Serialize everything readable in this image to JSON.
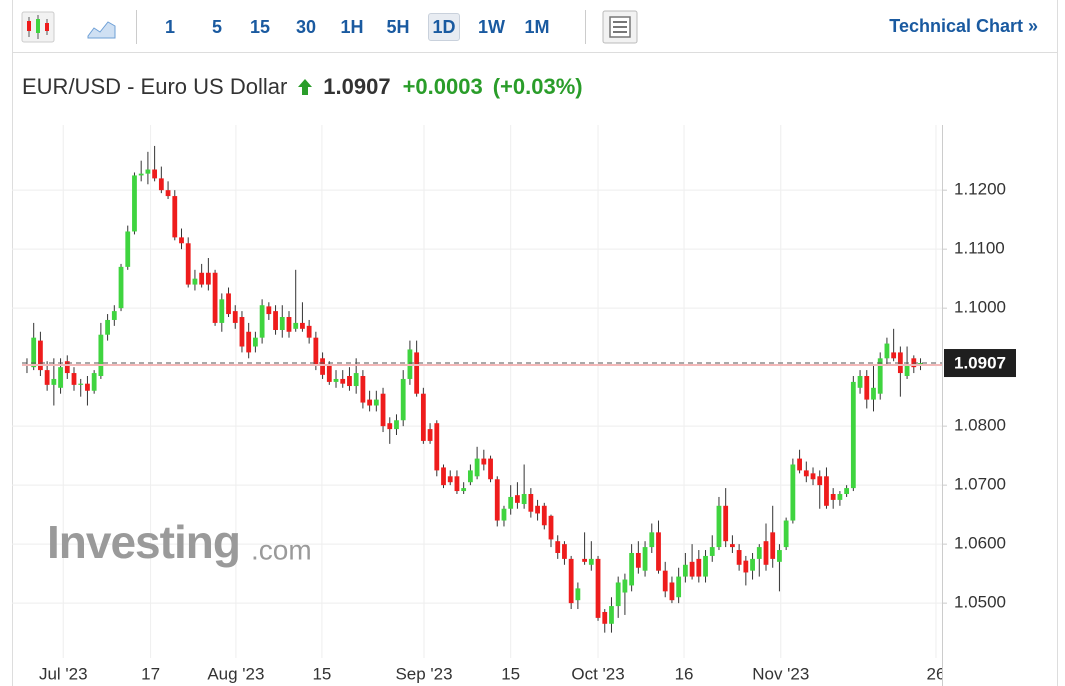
{
  "toolbar": {
    "intervals": [
      "1",
      "5",
      "15",
      "30",
      "1H",
      "5H",
      "1D",
      "1W",
      "1M"
    ],
    "selected": 6,
    "link": "Technical Chart »"
  },
  "header": {
    "title": "EUR/USD - Euro US Dollar",
    "change": "+0.0003",
    "change_pct": "(+0.03%)"
  },
  "watermark": {
    "brand": "Investing",
    "suffix": ".com"
  },
  "chart_data": {
    "type": "candlestick",
    "last_price": 1.0907,
    "up_color": "#3fd43f",
    "down_color": "#ee1c1c",
    "wick_color": "#333333",
    "grid": true,
    "xlim": [
      -0.74,
      135.9
    ],
    "xticks": [
      {
        "value": 5.4,
        "label": "Jul '23"
      },
      {
        "value": 18.4,
        "label": "17"
      },
      {
        "value": 31.1,
        "label": "Aug '23"
      },
      {
        "value": 43.9,
        "label": "15"
      },
      {
        "value": 59.1,
        "label": "Sep '23"
      },
      {
        "value": 72,
        "label": "15"
      },
      {
        "value": 85,
        "label": "Oct '23"
      },
      {
        "value": 97.8,
        "label": "16"
      },
      {
        "value": 112.2,
        "label": "Nov '23"
      },
      {
        "value": 135.3,
        "label": "26"
      }
    ],
    "ylim": [
      1.0407,
      1.1302
    ],
    "yticks": [
      {
        "value": 1.05,
        "label": "1.0500"
      },
      {
        "value": 1.06,
        "label": "1.0600"
      },
      {
        "value": 1.07,
        "label": "1.0700"
      },
      {
        "value": 1.08,
        "label": "1.0800"
      },
      {
        "value": 1.1,
        "label": "1.1000"
      },
      {
        "value": 1.11,
        "label": "1.1100"
      },
      {
        "value": 1.12,
        "label": "1.1200"
      }
    ],
    "ohlc": [
      [
        1.0905,
        1.0915,
        1.089,
        1.0905
      ],
      [
        1.09,
        1.0975,
        1.0895,
        1.095
      ],
      [
        1.0945,
        1.096,
        1.0885,
        1.0895
      ],
      [
        1.0895,
        1.091,
        1.086,
        1.087
      ],
      [
        1.087,
        1.0915,
        1.0835,
        1.088
      ],
      [
        1.0865,
        1.0915,
        1.0855,
        1.09
      ],
      [
        1.091,
        1.092,
        1.088,
        1.089
      ],
      [
        1.089,
        1.09,
        1.086,
        1.087
      ],
      [
        1.087,
        1.088,
        1.085,
        1.0872
      ],
      [
        1.0872,
        1.0885,
        1.0835,
        1.086
      ],
      [
        1.086,
        1.0895,
        1.0855,
        1.089
      ],
      [
        1.0885,
        1.0975,
        1.088,
        1.0955
      ],
      [
        1.0955,
        1.099,
        1.0945,
        1.098
      ],
      [
        1.098,
        1.1005,
        1.097,
        1.0995
      ],
      [
        1.1,
        1.1075,
        1.0995,
        1.107
      ],
      [
        1.107,
        1.114,
        1.1065,
        1.113
      ],
      [
        1.113,
        1.123,
        1.1125,
        1.1225
      ],
      [
        1.1225,
        1.125,
        1.1215,
        1.1228
      ],
      [
        1.1228,
        1.1265,
        1.121,
        1.1235
      ],
      [
        1.1235,
        1.1275,
        1.1215,
        1.122
      ],
      [
        1.122,
        1.124,
        1.1195,
        1.12
      ],
      [
        1.12,
        1.1215,
        1.1185,
        1.119
      ],
      [
        1.119,
        1.12,
        1.1115,
        1.112
      ],
      [
        1.112,
        1.1135,
        1.11,
        1.111
      ],
      [
        1.111,
        1.112,
        1.1035,
        1.104
      ],
      [
        1.104,
        1.1065,
        1.103,
        1.105
      ],
      [
        1.106,
        1.1075,
        1.1035,
        1.104
      ],
      [
        1.106,
        1.1085,
        1.103,
        1.104
      ],
      [
        1.106,
        1.1065,
        1.097,
        1.0975
      ],
      [
        1.0975,
        1.1025,
        1.096,
        1.1015
      ],
      [
        1.1025,
        1.1035,
        1.0985,
        1.099
      ],
      [
        1.0995,
        1.1005,
        1.0965,
        1.0975
      ],
      [
        1.0985,
        1.0995,
        1.0925,
        1.0935
      ],
      [
        1.096,
        1.0975,
        1.0915,
        1.0925
      ],
      [
        1.0935,
        1.096,
        1.0925,
        1.095
      ],
      [
        1.095,
        1.1015,
        1.094,
        1.1005
      ],
      [
        1.1003,
        1.101,
        1.098,
        1.099
      ],
      [
        1.0995,
        1.1005,
        1.0955,
        1.0963
      ],
      [
        1.0963,
        1.1005,
        1.095,
        1.0985
      ],
      [
        1.0985,
        1.0995,
        1.095,
        1.096
      ],
      [
        1.0965,
        1.1065,
        1.096,
        1.0975
      ],
      [
        1.0975,
        1.101,
        1.096,
        1.0965
      ],
      [
        1.097,
        1.098,
        1.094,
        1.095
      ],
      [
        1.095,
        1.096,
        1.0895,
        1.0905
      ],
      [
        1.0915,
        1.0925,
        1.088,
        1.0887
      ],
      [
        1.0905,
        1.091,
        1.087,
        1.0875
      ],
      [
        1.0875,
        1.0895,
        1.0865,
        1.088
      ],
      [
        1.088,
        1.0895,
        1.0865,
        1.0872
      ],
      [
        1.0885,
        1.09,
        1.086,
        1.0868
      ],
      [
        1.0868,
        1.0915,
        1.0855,
        1.089
      ],
      [
        1.0885,
        1.0895,
        1.083,
        1.084
      ],
      [
        1.0845,
        1.086,
        1.0825,
        1.0835
      ],
      [
        1.0835,
        1.086,
        1.0825,
        1.0845
      ],
      [
        1.0855,
        1.0865,
        1.079,
        1.08
      ],
      [
        1.0805,
        1.0815,
        1.077,
        1.0795
      ],
      [
        1.0795,
        1.082,
        1.0785,
        1.081
      ],
      [
        1.081,
        1.0895,
        1.08,
        1.088
      ],
      [
        1.088,
        1.0945,
        1.087,
        1.093
      ],
      [
        1.0925,
        1.0945,
        1.085,
        1.0855
      ],
      [
        1.0855,
        1.0865,
        1.077,
        1.0775
      ],
      [
        1.0795,
        1.0805,
        1.077,
        1.0775
      ],
      [
        1.0805,
        1.081,
        1.0715,
        1.0725
      ],
      [
        1.073,
        1.0735,
        1.0695,
        1.07
      ],
      [
        1.0715,
        1.0725,
        1.07,
        1.0705
      ],
      [
        1.0715,
        1.0725,
        1.0685,
        1.069
      ],
      [
        1.069,
        1.0705,
        1.0685,
        1.0695
      ],
      [
        1.0705,
        1.0735,
        1.07,
        1.0725
      ],
      [
        1.0715,
        1.0765,
        1.071,
        1.0745
      ],
      [
        1.0745,
        1.076,
        1.0725,
        1.0735
      ],
      [
        1.0745,
        1.075,
        1.0705,
        1.071
      ],
      [
        1.071,
        1.0715,
        1.063,
        1.064
      ],
      [
        1.064,
        1.0665,
        1.063,
        1.066
      ],
      [
        1.066,
        1.07,
        1.065,
        1.068
      ],
      [
        1.0683,
        1.0705,
        1.066,
        1.067
      ],
      [
        1.0668,
        1.0735,
        1.066,
        1.0685
      ],
      [
        1.0685,
        1.0695,
        1.0645,
        1.0655
      ],
      [
        1.0665,
        1.0675,
        1.064,
        1.0652
      ],
      [
        1.0665,
        1.067,
        1.0625,
        1.0632
      ],
      [
        1.0648,
        1.065,
        1.0595,
        1.0608
      ],
      [
        1.0605,
        1.0615,
        1.0575,
        1.0585
      ],
      [
        1.06,
        1.0605,
        1.0565,
        1.0575
      ],
      [
        1.0575,
        1.058,
        1.049,
        1.05
      ],
      [
        1.0505,
        1.0535,
        1.049,
        1.0525
      ],
      [
        1.0575,
        1.062,
        1.0565,
        1.057
      ],
      [
        1.0565,
        1.0605,
        1.0555,
        1.0575
      ],
      [
        1.0575,
        1.058,
        1.047,
        1.0475
      ],
      [
        1.0485,
        1.049,
        1.045,
        1.0465
      ],
      [
        1.0465,
        1.051,
        1.045,
        1.0495
      ],
      [
        1.0495,
        1.0545,
        1.0475,
        1.0535
      ],
      [
        1.0518,
        1.055,
        1.048,
        1.054
      ],
      [
        1.053,
        1.06,
        1.052,
        1.0585
      ],
      [
        1.0585,
        1.0605,
        1.055,
        1.056
      ],
      [
        1.0555,
        1.0605,
        1.0545,
        1.0595
      ],
      [
        1.0595,
        1.0635,
        1.0585,
        1.062
      ],
      [
        1.062,
        1.064,
        1.055,
        1.0555
      ],
      [
        1.0555,
        1.057,
        1.051,
        1.052
      ],
      [
        1.0535,
        1.0545,
        1.05,
        1.0505
      ],
      [
        1.051,
        1.056,
        1.05,
        1.0545
      ],
      [
        1.0545,
        1.0585,
        1.0535,
        1.0565
      ],
      [
        1.057,
        1.06,
        1.054,
        1.0545
      ],
      [
        1.0575,
        1.059,
        1.0535,
        1.0545
      ],
      [
        1.0545,
        1.059,
        1.0535,
        1.058
      ],
      [
        1.058,
        1.0615,
        1.057,
        1.0595
      ],
      [
        1.0595,
        1.068,
        1.059,
        1.0665
      ],
      [
        1.0665,
        1.0695,
        1.0595,
        1.0605
      ],
      [
        1.06,
        1.0615,
        1.0585,
        1.0595
      ],
      [
        1.059,
        1.06,
        1.0555,
        1.0565
      ],
      [
        1.0572,
        1.058,
        1.053,
        1.0552
      ],
      [
        1.0555,
        1.0585,
        1.054,
        1.0575
      ],
      [
        1.0575,
        1.06,
        1.0545,
        1.0595
      ],
      [
        1.0605,
        1.0635,
        1.0555,
        1.0565
      ],
      [
        1.062,
        1.0665,
        1.056,
        1.0575
      ],
      [
        1.057,
        1.06,
        1.052,
        1.059
      ],
      [
        1.0595,
        1.0645,
        1.059,
        1.064
      ],
      [
        1.064,
        1.0745,
        1.0635,
        1.0735
      ],
      [
        1.0745,
        1.076,
        1.072,
        1.0725
      ],
      [
        1.0725,
        1.074,
        1.0705,
        1.0715
      ],
      [
        1.072,
        1.073,
        1.07,
        1.071
      ],
      [
        1.0715,
        1.0725,
        1.066,
        1.07
      ],
      [
        1.0715,
        1.073,
        1.066,
        1.0665
      ],
      [
        1.0685,
        1.0695,
        1.066,
        1.0675
      ],
      [
        1.0675,
        1.069,
        1.0665,
        1.0685
      ],
      [
        1.0685,
        1.07,
        1.068,
        1.0695
      ],
      [
        1.0695,
        1.0885,
        1.069,
        1.0875
      ],
      [
        1.0865,
        1.0895,
        1.0855,
        1.0885
      ],
      [
        1.0885,
        1.0895,
        1.083,
        1.0845
      ],
      [
        1.0845,
        1.0905,
        1.0825,
        1.0865
      ],
      [
        1.0855,
        1.0925,
        1.0845,
        1.0915
      ],
      [
        1.0915,
        1.095,
        1.0905,
        1.094
      ],
      [
        1.0925,
        1.0965,
        1.091,
        1.0915
      ],
      [
        1.0925,
        1.0935,
        1.085,
        1.089
      ],
      [
        1.0885,
        1.0935,
        1.088,
        1.0905
      ],
      [
        1.0915,
        1.092,
        1.089,
        1.09
      ],
      [
        1.0905,
        1.0915,
        1.0895,
        1.0907
      ]
    ]
  }
}
